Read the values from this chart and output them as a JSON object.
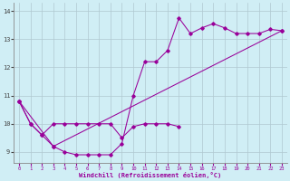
{
  "xlabel": "Windchill (Refroidissement éolien,°C)",
  "background_color": "#d0eef5",
  "grid_color": "#b0c8d0",
  "line_color": "#990099",
  "xlim": [
    -0.5,
    23.5
  ],
  "ylim": [
    8.6,
    14.3
  ],
  "yticks": [
    9,
    10,
    11,
    12,
    13,
    14
  ],
  "xticks": [
    0,
    1,
    2,
    3,
    4,
    5,
    6,
    7,
    8,
    9,
    10,
    11,
    12,
    13,
    14,
    15,
    16,
    17,
    18,
    19,
    20,
    21,
    22,
    23
  ],
  "series1_x": [
    0,
    1,
    2,
    3,
    4,
    5,
    6,
    7,
    8,
    9,
    10,
    11,
    12,
    13,
    14,
    15,
    16,
    17,
    18,
    19,
    20,
    21,
    22,
    23
  ],
  "series1_y": [
    10.8,
    10.0,
    9.6,
    9.2,
    9.0,
    8.9,
    8.9,
    8.9,
    8.9,
    9.3,
    11.0,
    12.2,
    12.2,
    12.6,
    13.75,
    13.2,
    13.4,
    13.55,
    13.4,
    13.2,
    13.2,
    13.2,
    13.35,
    13.3
  ],
  "series2_x": [
    0,
    1,
    2,
    3,
    4,
    5,
    6,
    7,
    8,
    9,
    10,
    11,
    12,
    13,
    14
  ],
  "series2_y": [
    10.8,
    10.0,
    9.6,
    10.0,
    10.0,
    10.0,
    10.0,
    10.0,
    10.0,
    9.5,
    9.9,
    10.0,
    10.0,
    10.0,
    9.9
  ],
  "series3_x": [
    0,
    3,
    23
  ],
  "series3_y": [
    10.8,
    9.2,
    13.3
  ]
}
